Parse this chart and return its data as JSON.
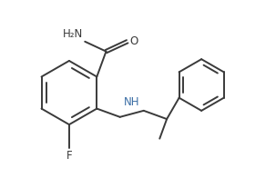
{
  "bg_color": "#ffffff",
  "line_color": "#3a3a3a",
  "nh_color": "#3b6ea5",
  "line_width": 1.4,
  "font_size": 8.5,
  "xlim": [
    -0.5,
    10.5
  ],
  "ylim": [
    -0.3,
    6.8
  ]
}
